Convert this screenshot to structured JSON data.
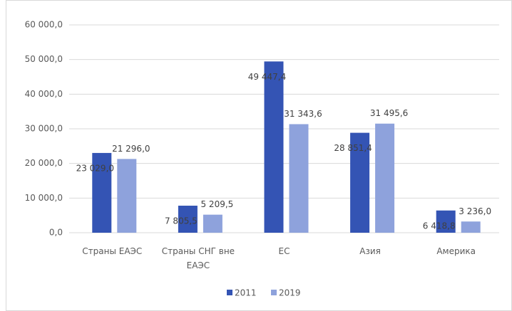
{
  "chart_data": {
    "type": "bar",
    "categories": [
      "Страны ЕАЭС",
      "Страны СНГ вне ЕАЭС",
      "ЕС",
      "Азия",
      "Америка"
    ],
    "series": [
      {
        "name": "2011",
        "color": "#3454b4",
        "values": [
          23029.0,
          7805.5,
          49447.4,
          28851.4,
          6418.8
        ],
        "value_labels": [
          "23 029,0",
          "7 805,5",
          "49 447,4",
          "28 851,4",
          "6 418,8"
        ]
      },
      {
        "name": "2019",
        "color": "#8ea2dc",
        "values": [
          21296.0,
          5209.5,
          31343.6,
          31495.6,
          3236.0
        ],
        "value_labels": [
          "21 296,0",
          "5 209,5",
          "31 343,6",
          "31 495,6",
          "3 236,0"
        ]
      }
    ],
    "ylim": [
      0,
      60000
    ],
    "yticks": [
      {
        "value": 0,
        "label": "0,0"
      },
      {
        "value": 10000,
        "label": "10 000,0"
      },
      {
        "value": 20000,
        "label": "20 000,0"
      },
      {
        "value": 30000,
        "label": "30 000,0"
      },
      {
        "value": 40000,
        "label": "40 000,0"
      },
      {
        "value": 50000,
        "label": "50 000,0"
      },
      {
        "value": 60000,
        "label": "60 000,0"
      }
    ],
    "grid": true,
    "legend": "bottom"
  }
}
